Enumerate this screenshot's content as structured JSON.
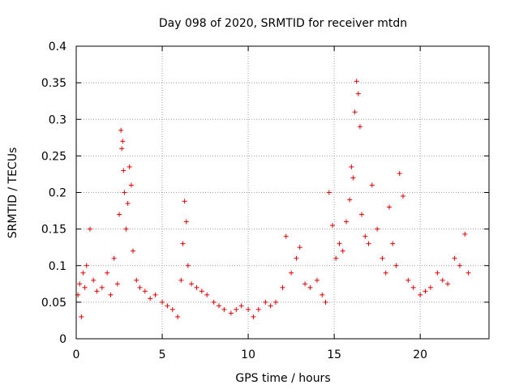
{
  "chart_data": {
    "type": "scatter",
    "title": "Day 098 of 2020, SRMTID for receiver mtdn",
    "xlabel": "GPS time / hours",
    "ylabel": "SRMTID / TECUs",
    "xlim": [
      0,
      24
    ],
    "ylim": [
      0,
      0.4
    ],
    "x_ticks": [
      0,
      5,
      10,
      15,
      20
    ],
    "x_tick_labels": [
      "0",
      "5",
      "10",
      "15",
      "20"
    ],
    "y_ticks": [
      0,
      0.05,
      0.1,
      0.15,
      0.2,
      0.25,
      0.3,
      0.35,
      0.4
    ],
    "y_tick_labels": [
      "0",
      "0.05",
      "0.1",
      "0.15",
      "0.2",
      "0.25",
      "0.3",
      "0.35",
      "0.4"
    ],
    "grid": true,
    "marker": "+",
    "color": "#e00000",
    "series": [
      {
        "name": "SRMTID",
        "x": [
          0.1,
          0.2,
          0.3,
          0.4,
          0.5,
          0.6,
          0.8,
          1.0,
          1.2,
          1.5,
          1.8,
          2.0,
          2.2,
          2.4,
          2.5,
          2.6,
          2.65,
          2.7,
          2.75,
          2.8,
          2.9,
          3.0,
          3.1,
          3.2,
          3.3,
          3.5,
          3.7,
          4.0,
          4.3,
          4.6,
          5.0,
          5.3,
          5.6,
          5.9,
          6.1,
          6.2,
          6.3,
          6.4,
          6.5,
          6.7,
          7.0,
          7.3,
          7.6,
          8.0,
          8.3,
          8.6,
          9.0,
          9.3,
          9.6,
          10.0,
          10.3,
          10.6,
          11.0,
          11.3,
          11.6,
          12.0,
          12.2,
          12.5,
          12.8,
          13.0,
          13.3,
          13.6,
          14.0,
          14.3,
          14.5,
          14.7,
          14.9,
          15.1,
          15.3,
          15.5,
          15.7,
          15.9,
          16.0,
          16.1,
          16.2,
          16.3,
          16.4,
          16.5,
          16.6,
          16.8,
          17.0,
          17.2,
          17.5,
          17.8,
          18.0,
          18.2,
          18.4,
          18.6,
          18.8,
          19.0,
          19.3,
          19.6,
          20.0,
          20.3,
          20.6,
          21.0,
          21.3,
          21.6,
          22.0,
          22.3,
          22.6,
          22.8
        ],
        "y": [
          0.06,
          0.075,
          0.03,
          0.09,
          0.07,
          0.1,
          0.15,
          0.08,
          0.065,
          0.07,
          0.09,
          0.06,
          0.11,
          0.075,
          0.17,
          0.285,
          0.26,
          0.27,
          0.23,
          0.2,
          0.15,
          0.185,
          0.235,
          0.21,
          0.12,
          0.08,
          0.07,
          0.065,
          0.055,
          0.06,
          0.05,
          0.045,
          0.04,
          0.03,
          0.08,
          0.13,
          0.188,
          0.16,
          0.1,
          0.075,
          0.07,
          0.065,
          0.06,
          0.05,
          0.045,
          0.04,
          0.035,
          0.04,
          0.045,
          0.04,
          0.03,
          0.04,
          0.05,
          0.045,
          0.05,
          0.07,
          0.14,
          0.09,
          0.11,
          0.125,
          0.075,
          0.07,
          0.08,
          0.06,
          0.05,
          0.2,
          0.155,
          0.11,
          0.13,
          0.12,
          0.16,
          0.19,
          0.235,
          0.22,
          0.31,
          0.352,
          0.335,
          0.29,
          0.17,
          0.14,
          0.13,
          0.21,
          0.15,
          0.11,
          0.09,
          0.18,
          0.13,
          0.1,
          0.226,
          0.195,
          0.08,
          0.07,
          0.06,
          0.065,
          0.07,
          0.09,
          0.08,
          0.075,
          0.11,
          0.1,
          0.143,
          0.09
        ]
      }
    ]
  }
}
